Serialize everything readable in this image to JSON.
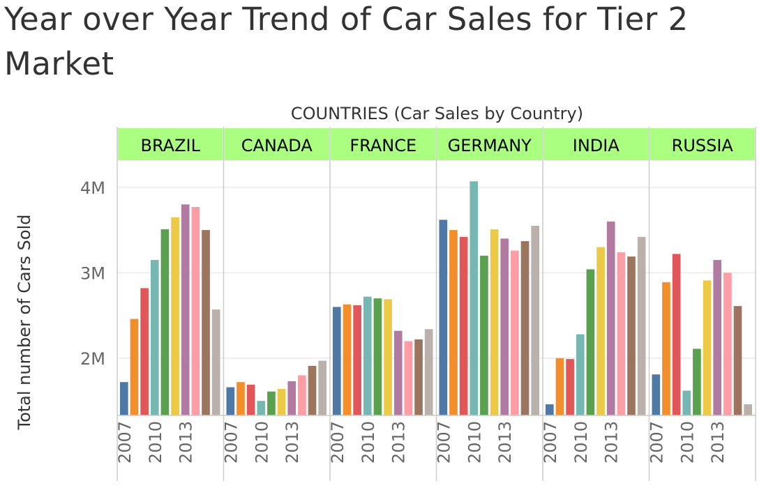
{
  "title": "Year over Year Trend of Car Sales for Tier 2 Market",
  "colors": {
    "header_bg": "#abff80",
    "grid": "#eeeeee",
    "divider": "#cccccc",
    "years": [
      "#4e79a7",
      "#f28e2b",
      "#e15759",
      "#76b7b2",
      "#59a14f",
      "#edc948",
      "#b07aa1",
      "#ff9da7",
      "#9c755f",
      "#bab0ac"
    ]
  },
  "chart_data": {
    "type": "bar",
    "title": "Year over Year Trend of Car Sales for Tier 2 Market",
    "super_header": "COUNTRIES (Car Sales by Country)",
    "ylabel": "Total number of Cars Sold",
    "xlabel": "",
    "ylim": [
      1330000,
      4300000
    ],
    "yticks": [
      2000000,
      3000000,
      4000000
    ],
    "ytick_labels": [
      "2M",
      "3M",
      "4M"
    ],
    "xtick_labels": [
      "2007",
      "2010",
      "2013"
    ],
    "grid": true,
    "categories": [
      "2007",
      "2008",
      "2009",
      "2010",
      "2011",
      "2012",
      "2013",
      "2014",
      "2015",
      "2016"
    ],
    "panels": [
      {
        "name": "BRAZIL",
        "values": [
          1720000,
          2460000,
          2820000,
          3150000,
          3510000,
          3650000,
          3800000,
          3770000,
          3500000,
          2570000
        ]
      },
      {
        "name": "CANADA",
        "values": [
          1660000,
          1720000,
          1690000,
          1500000,
          1610000,
          1640000,
          1730000,
          1800000,
          1910000,
          1970000
        ]
      },
      {
        "name": "FRANCE",
        "values": [
          2600000,
          2630000,
          2620000,
          2720000,
          2700000,
          2690000,
          2320000,
          2200000,
          2220000,
          2340000
        ]
      },
      {
        "name": "GERMANY",
        "values": [
          3620000,
          3500000,
          3420000,
          4070000,
          3200000,
          3510000,
          3400000,
          3260000,
          3370000,
          3550000
        ]
      },
      {
        "name": "INDIA",
        "values": [
          1460000,
          2000000,
          1990000,
          2280000,
          3040000,
          3300000,
          3600000,
          3240000,
          3190000,
          3420000
        ]
      },
      {
        "name": "RUSSIA",
        "values": [
          1810000,
          2890000,
          3220000,
          1620000,
          2110000,
          2910000,
          3150000,
          3000000,
          2610000,
          1460000
        ]
      }
    ]
  }
}
